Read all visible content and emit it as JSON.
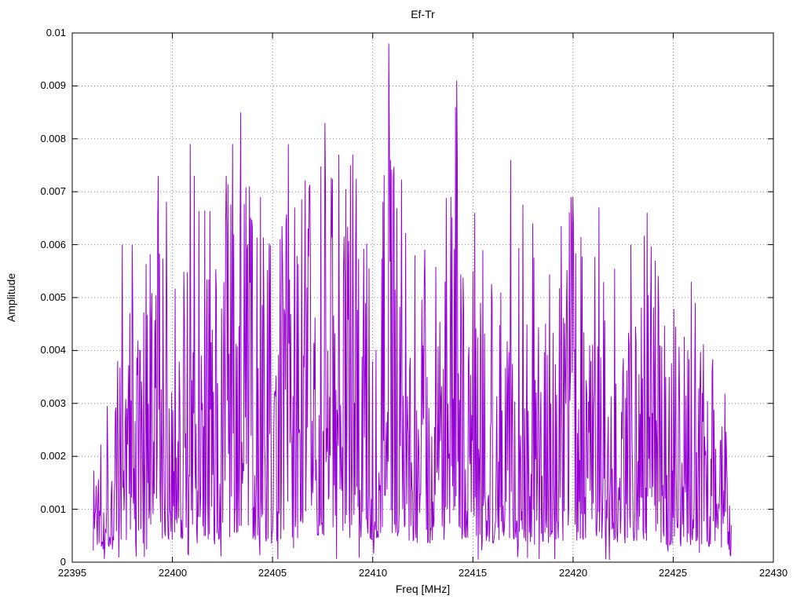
{
  "title": "Ef-Tr",
  "chart_data": {
    "type": "line",
    "title": "Ef-Tr",
    "xlabel": "Freq [MHz]",
    "ylabel": "Amplitude",
    "xlim": [
      22395,
      22430
    ],
    "ylim": [
      0,
      0.01
    ],
    "xticks": [
      22395,
      22400,
      22405,
      22410,
      22415,
      22420,
      22425,
      22430
    ],
    "xtick_labels": [
      "22395",
      "22400",
      "22405",
      "22410",
      "22415",
      "22420",
      "22425",
      "22430"
    ],
    "yticks": [
      0,
      0.001,
      0.002,
      0.003,
      0.004,
      0.005,
      0.006,
      0.007,
      0.008,
      0.009,
      0.01
    ],
    "ytick_labels": [
      "0",
      "0.001",
      "0.002",
      "0.003",
      "0.004",
      "0.005",
      "0.006",
      "0.007",
      "0.008",
      "0.009",
      "0.01"
    ],
    "grid": "dotted-major",
    "legend": "none",
    "line_color": "#9400d3",
    "background_color": "#ffffff",
    "border_color": "#000000",
    "grid_color": "#888888",
    "series_name": "Ef-Tr",
    "signal": {
      "description": "Dense noisy amplitude spectrum between 22396 and 22428 MHz; bulk of samples between 0.001 and 0.006, envelope peaking near 0.008 in the 22400-22411 MHz region, tallest spike 0.0098 at ~22410.8 MHz, second tallest 0.0091 at ~22414.2 MHz, tapering toward both band edges.",
      "x_start": 22396.05,
      "x_end": 22427.9,
      "n_points": 1100,
      "seed": 1337,
      "noise_floor_ratio": 0.06,
      "noise_exponent": 2.0,
      "envelope": [
        [
          22396.0,
          0.0022
        ],
        [
          22396.4,
          0.004
        ],
        [
          22397.2,
          0.0038
        ],
        [
          22397.8,
          0.006
        ],
        [
          22398.6,
          0.0055
        ],
        [
          22399.2,
          0.0073
        ],
        [
          22400.2,
          0.0069
        ],
        [
          22400.9,
          0.0079
        ],
        [
          22401.8,
          0.0072
        ],
        [
          22402.6,
          0.0073
        ],
        [
          22403.4,
          0.0085
        ],
        [
          22404.2,
          0.0069
        ],
        [
          22405.0,
          0.0062
        ],
        [
          22405.8,
          0.0079
        ],
        [
          22406.6,
          0.0073
        ],
        [
          22407.6,
          0.0083
        ],
        [
          22408.4,
          0.0077
        ],
        [
          22409.2,
          0.0075
        ],
        [
          22410.0,
          0.0068
        ],
        [
          22410.8,
          0.0098
        ],
        [
          22411.4,
          0.0076
        ],
        [
          22412.2,
          0.006
        ],
        [
          22413.2,
          0.0058
        ],
        [
          22414.2,
          0.0091
        ],
        [
          22415.0,
          0.0066
        ],
        [
          22416.0,
          0.006
        ],
        [
          22416.9,
          0.0076
        ],
        [
          22417.8,
          0.0064
        ],
        [
          22418.8,
          0.006
        ],
        [
          22419.8,
          0.0069
        ],
        [
          22420.8,
          0.0058
        ],
        [
          22421.4,
          0.0067
        ],
        [
          22422.4,
          0.0055
        ],
        [
          22423.2,
          0.006
        ],
        [
          22423.8,
          0.0066
        ],
        [
          22424.6,
          0.0054
        ],
        [
          22425.4,
          0.005
        ],
        [
          22426.2,
          0.0053
        ],
        [
          22426.8,
          0.0045
        ],
        [
          22427.4,
          0.0042
        ],
        [
          22427.9,
          0.002
        ]
      ],
      "peaks": [
        [
          22410.8,
          0.0098
        ],
        [
          22414.2,
          0.0091
        ],
        [
          22403.4,
          0.0085
        ],
        [
          22407.6,
          0.0083
        ],
        [
          22400.9,
          0.0079
        ],
        [
          22405.8,
          0.0079
        ],
        [
          22408.3,
          0.0077
        ],
        [
          22408.9,
          0.0075
        ],
        [
          22410.9,
          0.0076
        ],
        [
          22401.1,
          0.0073
        ],
        [
          22402.7,
          0.0073
        ],
        [
          22399.3,
          0.0073
        ],
        [
          22416.9,
          0.0076
        ],
        [
          22398.0,
          0.006
        ],
        [
          22413.9,
          0.0069
        ],
        [
          22419.9,
          0.0069
        ],
        [
          22421.3,
          0.0067
        ],
        [
          22423.7,
          0.0066
        ],
        [
          22415.1,
          0.0066
        ],
        [
          22404.4,
          0.0069
        ],
        [
          22397.5,
          0.006
        ],
        [
          22406.1,
          0.0067
        ],
        [
          22409.0,
          0.0077
        ],
        [
          22412.1,
          0.0058
        ],
        [
          22418.0,
          0.0064
        ],
        [
          22420.0,
          0.0069
        ],
        [
          22422.9,
          0.006
        ],
        [
          22425.9,
          0.0053
        ],
        [
          22424.1,
          0.0057
        ],
        [
          22426.1,
          0.0049
        ]
      ]
    }
  }
}
